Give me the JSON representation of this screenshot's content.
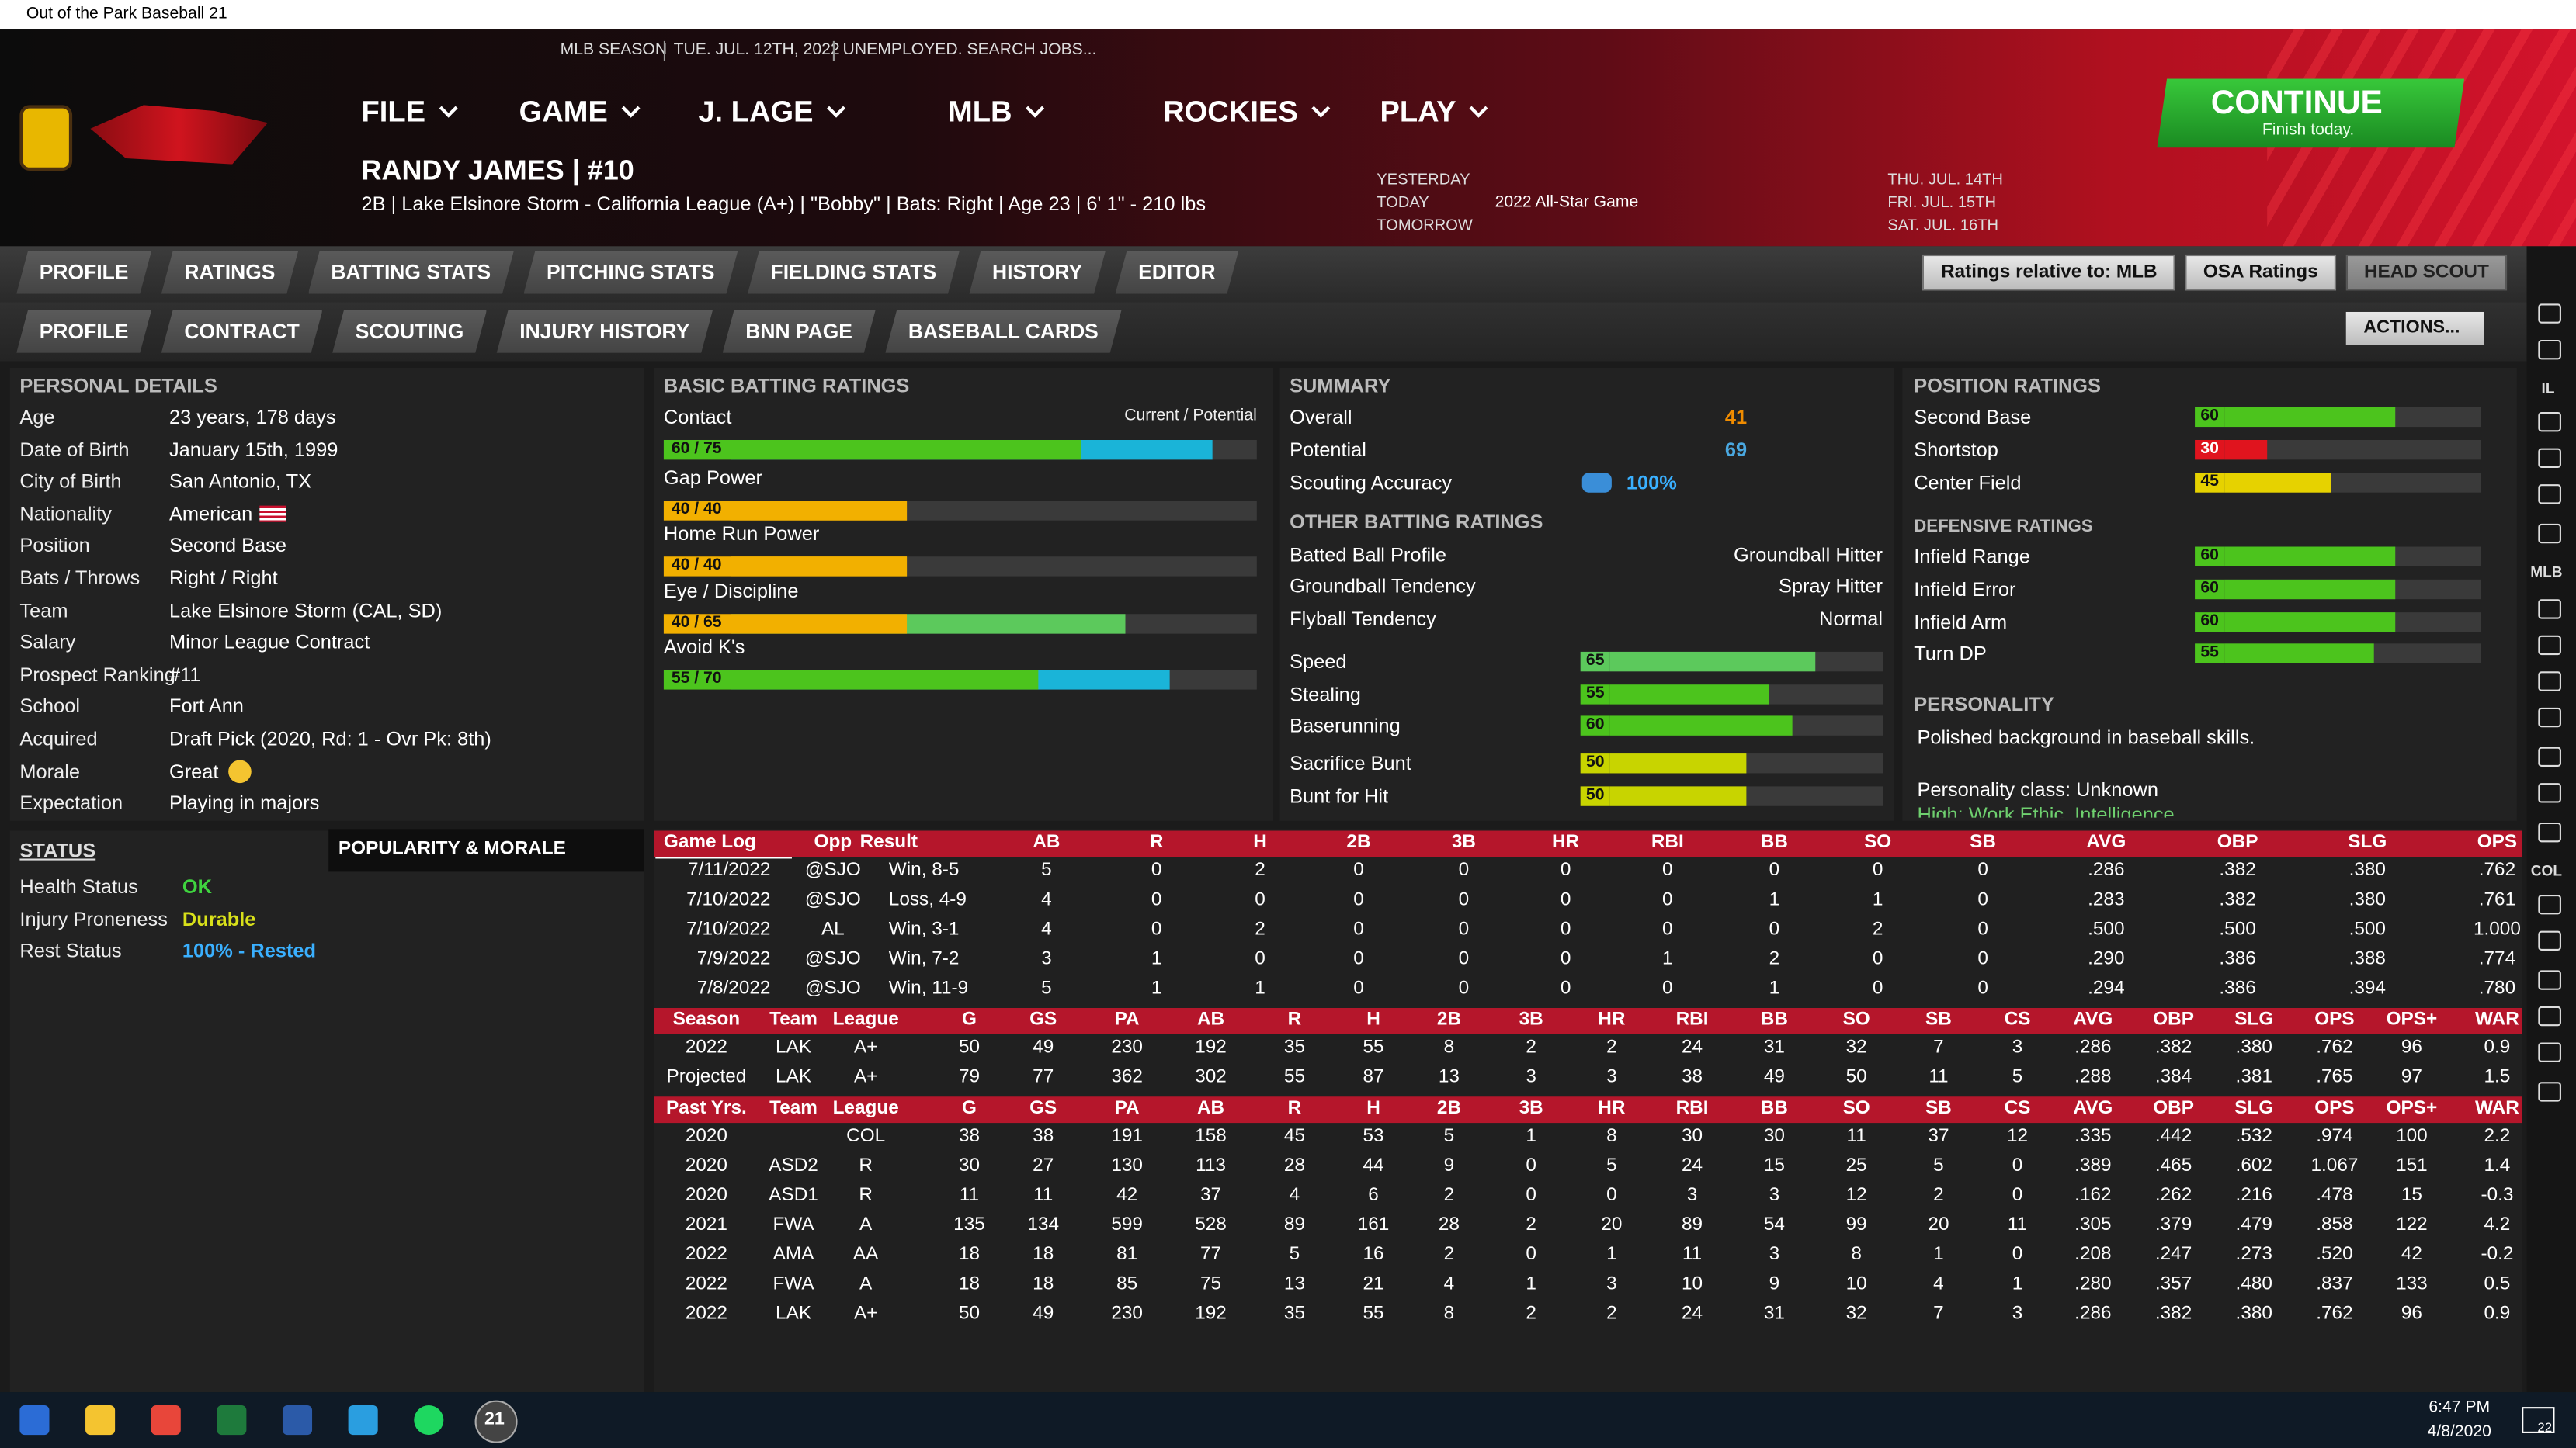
{
  "window": {
    "title": "Out of the Park Baseball 21"
  },
  "topbar": {
    "items": [
      "MLB SEASON",
      "TUE. JUL. 12TH, 2022",
      "UNEMPLOYED. SEARCH JOBS..."
    ]
  },
  "menu": [
    "FILE",
    "GAME",
    "J. LAGE",
    "MLB",
    "ROCKIES",
    "PLAY"
  ],
  "continue": {
    "label": "CONTINUE",
    "sub": "Finish today."
  },
  "player": {
    "name": "RANDY JAMES  |  #10",
    "info": "2B | Lake Elsinore Storm - California League (A+) | \"Bobby\" | Bats: Right | Age 23 | 6' 1\" - 210 lbs"
  },
  "schedule": {
    "days": [
      "YESTERDAY",
      "TODAY",
      "TOMORROW"
    ],
    "today_event": "2022 All-Star Game",
    "upcoming": [
      "THU. JUL. 14TH",
      "FRI. JUL. 15TH",
      "SAT. JUL. 16TH"
    ]
  },
  "tabs": [
    "PROFILE",
    "RATINGS",
    "BATTING STATS",
    "PITCHING STATS",
    "FIELDING STATS",
    "HISTORY",
    "EDITOR"
  ],
  "tools": [
    "Ratings relative to: MLB",
    "OSA Ratings",
    "HEAD SCOUT"
  ],
  "subtabs": [
    "PROFILE",
    "CONTRACT",
    "SCOUTING",
    "INJURY HISTORY",
    "BNN PAGE",
    "BASEBALL CARDS"
  ],
  "actions": "ACTIONS...",
  "personal": {
    "title": "PERSONAL DETAILS",
    "rows": [
      [
        "Age",
        "23 years, 178 days"
      ],
      [
        "Date of Birth",
        "January 15th, 1999"
      ],
      [
        "City of Birth",
        "San Antonio, TX"
      ],
      [
        "Nationality",
        "American"
      ],
      [
        "Position",
        "Second Base"
      ],
      [
        "Bats / Throws",
        "Right / Right"
      ],
      [
        "Team",
        "Lake Elsinore Storm (CAL, SD)"
      ],
      [
        "Salary",
        "Minor League Contract"
      ],
      [
        "Prospect Ranking",
        "#11"
      ],
      [
        "School",
        "Fort Ann"
      ],
      [
        "Acquired",
        "Draft Pick (2020, Rd: 1 - Ovr Pk: 8th)"
      ],
      [
        "Morale",
        "Great"
      ],
      [
        "Expectation",
        "Playing in majors"
      ]
    ]
  },
  "status": {
    "title": "STATUS",
    "tab": "POPULARITY & MORALE",
    "rows": [
      [
        "Health Status",
        "OK"
      ],
      [
        "Injury Proneness",
        "Durable"
      ],
      [
        "Rest Status",
        "100% - Rested"
      ]
    ],
    "colors": [
      "#3fd43f",
      "#d8e01a",
      "#3ab0ff"
    ]
  },
  "rating_range": [
    20,
    80
  ],
  "batting": {
    "title": "BASIC BATTING RATINGS",
    "legend": "Current / Potential",
    "ratings": [
      {
        "name": "Contact",
        "label": "60 / 75",
        "current": 60,
        "potential": 75,
        "colors": [
          "#4cc41d",
          "#1ab4d8"
        ]
      },
      {
        "name": "Gap Power",
        "label": "40 / 40",
        "current": 40,
        "potential": 40,
        "colors": [
          "#f2b000",
          "#f2b000"
        ]
      },
      {
        "name": "Home Run Power",
        "label": "40 / 40",
        "current": 40,
        "potential": 40,
        "colors": [
          "#f2b000",
          "#f2b000"
        ]
      },
      {
        "name": "Eye / Discipline",
        "label": "40 / 65",
        "current": 40,
        "potential": 65,
        "colors": [
          "#f2b000",
          "#5cc95c"
        ]
      },
      {
        "name": "Avoid K's",
        "label": "55 / 70",
        "current": 55,
        "potential": 70,
        "colors": [
          "#4cc41d",
          "#1ab4d8"
        ]
      }
    ]
  },
  "summary": {
    "title": "SUMMARY",
    "rows": [
      {
        "name": "Overall",
        "value": 41,
        "color": "#f08c00"
      },
      {
        "name": "Potential",
        "value": 69,
        "color": "#4aa8e0"
      },
      {
        "name": "Scouting Accuracy",
        "value": "100%",
        "color": "#3ab0ff"
      }
    ]
  },
  "other": {
    "title": "OTHER BATTING RATINGS",
    "text_rows": [
      [
        "Batted Ball Profile",
        "Groundball Hitter"
      ],
      [
        "Groundball Tendency",
        "Spray Hitter"
      ],
      [
        "Flyball Tendency",
        "Normal"
      ]
    ],
    "ratings": [
      {
        "name": "Speed",
        "value": 65,
        "color": "#5cc95c"
      },
      {
        "name": "Stealing",
        "value": 55,
        "color": "#4cc41d"
      },
      {
        "name": "Baserunning",
        "value": 60,
        "color": "#4cc41d"
      },
      {
        "name": "Sacrifice Bunt",
        "value": 50,
        "color": "#c8d400"
      },
      {
        "name": "Bunt for Hit",
        "value": 50,
        "color": "#c8d400"
      }
    ]
  },
  "position": {
    "title": "POSITION RATINGS",
    "ratings": [
      {
        "name": "Second Base",
        "value": 60,
        "color": "#4cc41d"
      },
      {
        "name": "Shortstop",
        "value": 30,
        "color": "#e0141e"
      },
      {
        "name": "Center Field",
        "value": 45,
        "color": "#e6d200"
      }
    ]
  },
  "defense": {
    "title": "DEFENSIVE RATINGS",
    "ratings": [
      {
        "name": "Infield Range",
        "value": 60,
        "color": "#4cc41d"
      },
      {
        "name": "Infield Error",
        "value": 60,
        "color": "#4cc41d"
      },
      {
        "name": "Infield Arm",
        "value": 60,
        "color": "#4cc41d"
      },
      {
        "name": "Turn DP",
        "value": 55,
        "color": "#4cc41d"
      }
    ]
  },
  "personality": {
    "title": "PERSONALITY",
    "text": "Polished background in baseball skills.",
    "class": "Personality class: Unknown",
    "high": "High: Work Ethic, Intelligence"
  },
  "game_log": {
    "header": [
      "Game Log",
      "Opp",
      "Result",
      "AB",
      "R",
      "H",
      "2B",
      "3B",
      "HR",
      "RBI",
      "BB",
      "SO",
      "SB",
      "AVG",
      "OBP",
      "SLG",
      "OPS"
    ],
    "rows": [
      [
        "7/11/2022",
        "@SJO",
        "Win, 8-5",
        "5",
        "0",
        "2",
        "0",
        "0",
        "0",
        "0",
        "0",
        "0",
        "0",
        ".286",
        ".382",
        ".380",
        ".762"
      ],
      [
        "7/10/2022",
        "@SJO",
        "Loss, 4-9",
        "4",
        "0",
        "0",
        "0",
        "0",
        "0",
        "0",
        "1",
        "1",
        "0",
        ".283",
        ".382",
        ".380",
        ".761"
      ],
      [
        "7/10/2022",
        "AL",
        "Win, 3-1",
        "4",
        "0",
        "2",
        "0",
        "0",
        "0",
        "0",
        "0",
        "2",
        "0",
        ".500",
        ".500",
        ".500",
        "1.000"
      ],
      [
        "7/9/2022",
        "@SJO",
        "Win, 7-2",
        "3",
        "1",
        "0",
        "0",
        "0",
        "0",
        "1",
        "2",
        "0",
        "0",
        ".290",
        ".386",
        ".388",
        ".774"
      ],
      [
        "7/8/2022",
        "@SJO",
        "Win, 11-9",
        "5",
        "1",
        "1",
        "0",
        "0",
        "0",
        "0",
        "1",
        "0",
        "0",
        ".294",
        ".386",
        ".394",
        ".780"
      ]
    ]
  },
  "season": {
    "header": [
      "Season",
      "Team",
      "League",
      "G",
      "GS",
      "PA",
      "AB",
      "R",
      "H",
      "2B",
      "3B",
      "HR",
      "RBI",
      "BB",
      "SO",
      "SB",
      "CS",
      "AVG",
      "OBP",
      "SLG",
      "OPS",
      "OPS+",
      "WAR"
    ],
    "rows": [
      [
        "2022",
        "LAK",
        "A+",
        "50",
        "49",
        "230",
        "192",
        "35",
        "55",
        "8",
        "2",
        "2",
        "24",
        "31",
        "32",
        "7",
        "3",
        ".286",
        ".382",
        ".380",
        ".762",
        "96",
        "0.9"
      ],
      [
        "Projected",
        "LAK",
        "A+",
        "79",
        "77",
        "362",
        "302",
        "55",
        "87",
        "13",
        "3",
        "3",
        "38",
        "49",
        "50",
        "11",
        "5",
        ".288",
        ".384",
        ".381",
        ".765",
        "97",
        "1.5"
      ]
    ]
  },
  "past": {
    "header": [
      "Past Yrs.",
      "Team",
      "League",
      "G",
      "GS",
      "PA",
      "AB",
      "R",
      "H",
      "2B",
      "3B",
      "HR",
      "RBI",
      "BB",
      "SO",
      "SB",
      "CS",
      "AVG",
      "OBP",
      "SLG",
      "OPS",
      "OPS+",
      "WAR"
    ],
    "rows": [
      [
        "2020",
        null,
        "COL",
        "38",
        "38",
        "191",
        "158",
        "45",
        "53",
        "5",
        "1",
        "8",
        "30",
        "30",
        "11",
        "37",
        "12",
        ".335",
        ".442",
        ".532",
        ".974",
        "100",
        "2.2"
      ],
      [
        "2020",
        "ASD2",
        "R",
        "30",
        "27",
        "130",
        "113",
        "28",
        "44",
        "9",
        "0",
        "5",
        "24",
        "15",
        "25",
        "5",
        "0",
        ".389",
        ".465",
        ".602",
        "1.067",
        "151",
        "1.4"
      ],
      [
        "2020",
        "ASD1",
        "R",
        "11",
        "11",
        "42",
        "37",
        "4",
        "6",
        "2",
        "0",
        "0",
        "3",
        "3",
        "12",
        "2",
        "0",
        ".162",
        ".262",
        ".216",
        ".478",
        "15",
        "-0.3"
      ],
      [
        "2021",
        "FWA",
        "A",
        "135",
        "134",
        "599",
        "528",
        "89",
        "161",
        "28",
        "2",
        "20",
        "89",
        "54",
        "99",
        "20",
        "11",
        ".305",
        ".379",
        ".479",
        ".858",
        "122",
        "4.2"
      ],
      [
        "2022",
        "AMA",
        "AA",
        "18",
        "18",
        "81",
        "77",
        "5",
        "16",
        "2",
        "0",
        "1",
        "11",
        "3",
        "8",
        "1",
        "0",
        ".208",
        ".247",
        ".273",
        ".520",
        "42",
        "-0.2"
      ],
      [
        "2022",
        "FWA",
        "A",
        "18",
        "18",
        "85",
        "75",
        "13",
        "21",
        "4",
        "1",
        "3",
        "10",
        "9",
        "10",
        "4",
        "1",
        ".280",
        ".357",
        ".480",
        ".837",
        "133",
        "0.5"
      ],
      [
        "2022",
        "LAK",
        "A+",
        "50",
        "49",
        "230",
        "192",
        "35",
        "55",
        "8",
        "2",
        "2",
        "24",
        "31",
        "32",
        "7",
        "3",
        ".286",
        ".382",
        ".380",
        ".762",
        "96",
        "0.9"
      ]
    ]
  },
  "sidebar": [
    "IL",
    "MLB",
    "COL"
  ],
  "taskbar": {
    "app": "21",
    "time": "6:47 PM",
    "date": "4/8/2020",
    "notifications": "22"
  }
}
